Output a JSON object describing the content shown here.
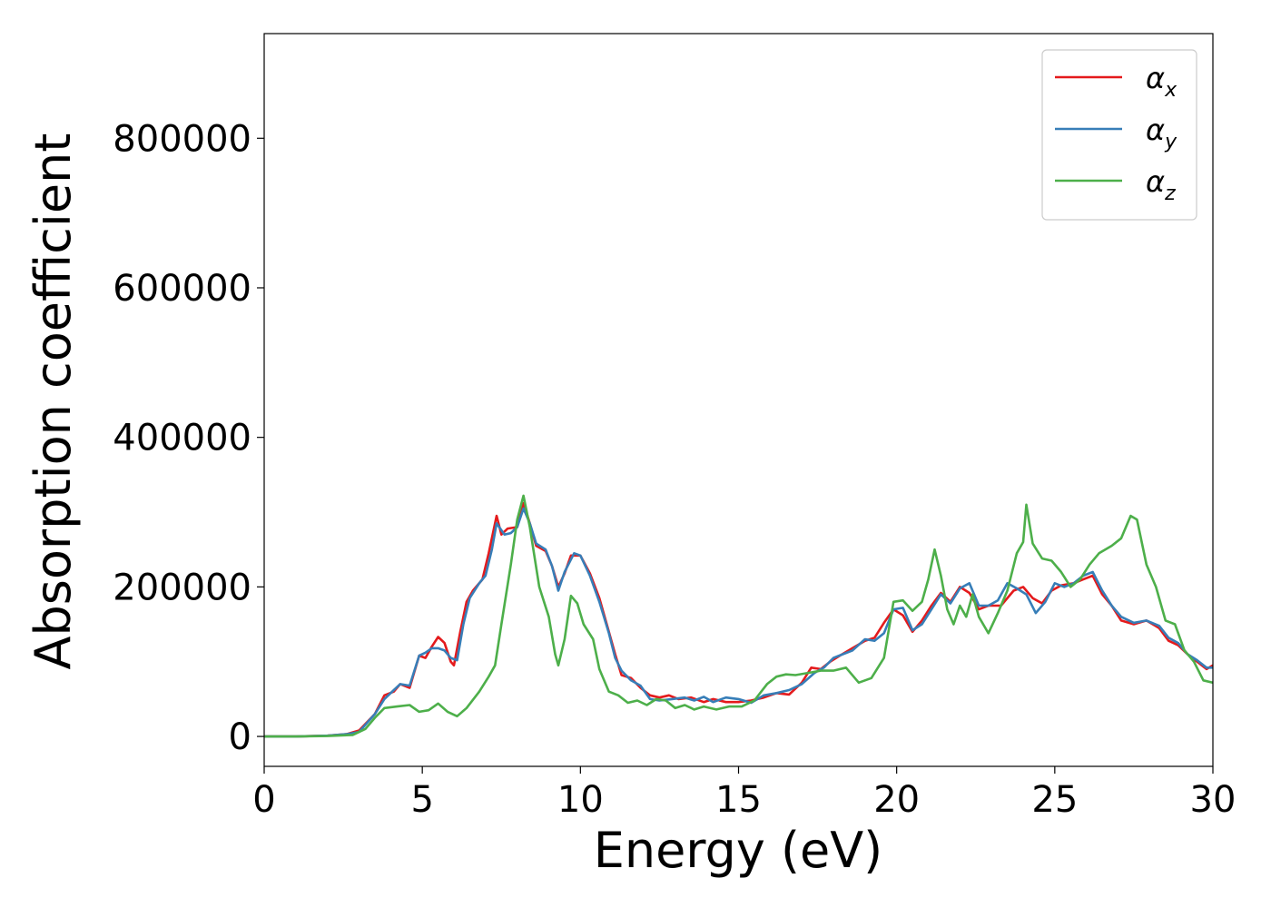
{
  "chart_data": {
    "type": "line",
    "title": "",
    "xlabel": "Energy (eV)",
    "ylabel": "Absorption coefficient",
    "xlim": [
      0,
      30
    ],
    "ylim": [
      -40000,
      940000
    ],
    "xticks": [
      0,
      5,
      10,
      15,
      20,
      25,
      30
    ],
    "yticks": [
      0,
      200000,
      400000,
      600000,
      800000
    ],
    "grid": false,
    "legend_position": "top-right",
    "series": [
      {
        "name": "α",
        "subscript": "x",
        "color": "#e41a1c",
        "points": [
          [
            0,
            0
          ],
          [
            1,
            0
          ],
          [
            2,
            1000
          ],
          [
            2.6,
            3000
          ],
          [
            3,
            8000
          ],
          [
            3.5,
            30000
          ],
          [
            3.8,
            55000
          ],
          [
            4.1,
            60000
          ],
          [
            4.3,
            70000
          ],
          [
            4.6,
            65000
          ],
          [
            4.9,
            108000
          ],
          [
            5.1,
            105000
          ],
          [
            5.3,
            120000
          ],
          [
            5.5,
            133000
          ],
          [
            5.7,
            125000
          ],
          [
            5.9,
            100000
          ],
          [
            6.0,
            95000
          ],
          [
            6.2,
            140000
          ],
          [
            6.4,
            180000
          ],
          [
            6.6,
            195000
          ],
          [
            6.9,
            210000
          ],
          [
            7.1,
            245000
          ],
          [
            7.35,
            295000
          ],
          [
            7.5,
            270000
          ],
          [
            7.7,
            278000
          ],
          [
            8.0,
            280000
          ],
          [
            8.2,
            312000
          ],
          [
            8.4,
            285000
          ],
          [
            8.6,
            255000
          ],
          [
            8.9,
            248000
          ],
          [
            9.1,
            228000
          ],
          [
            9.3,
            200000
          ],
          [
            9.5,
            218000
          ],
          [
            9.7,
            242000
          ],
          [
            10.0,
            242000
          ],
          [
            10.3,
            218000
          ],
          [
            10.6,
            185000
          ],
          [
            10.9,
            140000
          ],
          [
            11.1,
            110000
          ],
          [
            11.3,
            82000
          ],
          [
            11.6,
            78000
          ],
          [
            11.9,
            65000
          ],
          [
            12.2,
            55000
          ],
          [
            12.5,
            52000
          ],
          [
            12.8,
            55000
          ],
          [
            13.1,
            50000
          ],
          [
            13.5,
            52000
          ],
          [
            13.9,
            46000
          ],
          [
            14.2,
            50000
          ],
          [
            14.6,
            46000
          ],
          [
            15.0,
            46000
          ],
          [
            15.4,
            48000
          ],
          [
            15.8,
            52000
          ],
          [
            16.2,
            58000
          ],
          [
            16.6,
            56000
          ],
          [
            17.0,
            72000
          ],
          [
            17.3,
            92000
          ],
          [
            17.6,
            90000
          ],
          [
            17.9,
            100000
          ],
          [
            18.2,
            108000
          ],
          [
            18.6,
            118000
          ],
          [
            19.0,
            128000
          ],
          [
            19.3,
            132000
          ],
          [
            19.6,
            152000
          ],
          [
            19.9,
            170000
          ],
          [
            20.2,
            162000
          ],
          [
            20.5,
            140000
          ],
          [
            20.8,
            155000
          ],
          [
            21.1,
            175000
          ],
          [
            21.4,
            192000
          ],
          [
            21.7,
            180000
          ],
          [
            22.0,
            200000
          ],
          [
            22.3,
            192000
          ],
          [
            22.6,
            170000
          ],
          [
            22.9,
            175000
          ],
          [
            23.3,
            175000
          ],
          [
            23.7,
            195000
          ],
          [
            24.0,
            200000
          ],
          [
            24.3,
            185000
          ],
          [
            24.6,
            178000
          ],
          [
            24.9,
            195000
          ],
          [
            25.2,
            202000
          ],
          [
            25.6,
            205000
          ],
          [
            25.9,
            210000
          ],
          [
            26.2,
            215000
          ],
          [
            26.5,
            190000
          ],
          [
            26.8,
            175000
          ],
          [
            27.1,
            155000
          ],
          [
            27.5,
            150000
          ],
          [
            27.9,
            155000
          ],
          [
            28.3,
            145000
          ],
          [
            28.6,
            128000
          ],
          [
            28.9,
            122000
          ],
          [
            29.2,
            110000
          ],
          [
            29.5,
            100000
          ],
          [
            29.8,
            90000
          ],
          [
            30,
            95000
          ]
        ]
      },
      {
        "name": "α",
        "subscript": "y",
        "color": "#377eb8",
        "points": [
          [
            0,
            0
          ],
          [
            1,
            0
          ],
          [
            2,
            1000
          ],
          [
            2.6,
            3000
          ],
          [
            3,
            6000
          ],
          [
            3.5,
            30000
          ],
          [
            3.8,
            50000
          ],
          [
            4.1,
            62000
          ],
          [
            4.3,
            70000
          ],
          [
            4.6,
            68000
          ],
          [
            4.9,
            108000
          ],
          [
            5.1,
            112000
          ],
          [
            5.3,
            118000
          ],
          [
            5.5,
            118000
          ],
          [
            5.7,
            115000
          ],
          [
            5.9,
            105000
          ],
          [
            6.1,
            102000
          ],
          [
            6.3,
            150000
          ],
          [
            6.5,
            185000
          ],
          [
            6.8,
            205000
          ],
          [
            7.0,
            215000
          ],
          [
            7.2,
            250000
          ],
          [
            7.35,
            285000
          ],
          [
            7.6,
            270000
          ],
          [
            7.8,
            272000
          ],
          [
            8.0,
            280000
          ],
          [
            8.2,
            305000
          ],
          [
            8.4,
            285000
          ],
          [
            8.6,
            258000
          ],
          [
            8.9,
            250000
          ],
          [
            9.1,
            228000
          ],
          [
            9.3,
            195000
          ],
          [
            9.5,
            220000
          ],
          [
            9.8,
            245000
          ],
          [
            10.0,
            242000
          ],
          [
            10.3,
            215000
          ],
          [
            10.6,
            180000
          ],
          [
            10.9,
            138000
          ],
          [
            11.1,
            105000
          ],
          [
            11.3,
            88000
          ],
          [
            11.6,
            75000
          ],
          [
            11.9,
            68000
          ],
          [
            12.2,
            50000
          ],
          [
            12.5,
            48000
          ],
          [
            12.9,
            50000
          ],
          [
            13.3,
            52000
          ],
          [
            13.6,
            48000
          ],
          [
            13.9,
            53000
          ],
          [
            14.2,
            46000
          ],
          [
            14.6,
            52000
          ],
          [
            15.0,
            50000
          ],
          [
            15.4,
            45000
          ],
          [
            15.8,
            55000
          ],
          [
            16.2,
            58000
          ],
          [
            16.6,
            62000
          ],
          [
            17.0,
            70000
          ],
          [
            17.4,
            85000
          ],
          [
            17.7,
            92000
          ],
          [
            18.0,
            105000
          ],
          [
            18.3,
            110000
          ],
          [
            18.6,
            115000
          ],
          [
            19.0,
            130000
          ],
          [
            19.3,
            128000
          ],
          [
            19.6,
            138000
          ],
          [
            19.9,
            170000
          ],
          [
            20.2,
            172000
          ],
          [
            20.5,
            142000
          ],
          [
            20.8,
            150000
          ],
          [
            21.1,
            170000
          ],
          [
            21.4,
            190000
          ],
          [
            21.7,
            178000
          ],
          [
            22.0,
            198000
          ],
          [
            22.3,
            205000
          ],
          [
            22.6,
            175000
          ],
          [
            22.9,
            175000
          ],
          [
            23.2,
            182000
          ],
          [
            23.5,
            205000
          ],
          [
            23.8,
            198000
          ],
          [
            24.1,
            190000
          ],
          [
            24.4,
            165000
          ],
          [
            24.7,
            180000
          ],
          [
            25.0,
            205000
          ],
          [
            25.3,
            200000
          ],
          [
            25.6,
            205000
          ],
          [
            25.9,
            215000
          ],
          [
            26.2,
            220000
          ],
          [
            26.5,
            195000
          ],
          [
            26.8,
            175000
          ],
          [
            27.1,
            160000
          ],
          [
            27.5,
            152000
          ],
          [
            27.9,
            155000
          ],
          [
            28.3,
            148000
          ],
          [
            28.6,
            132000
          ],
          [
            28.9,
            125000
          ],
          [
            29.2,
            110000
          ],
          [
            29.5,
            102000
          ],
          [
            29.8,
            92000
          ],
          [
            30,
            92000
          ]
        ]
      },
      {
        "name": "α",
        "subscript": "z",
        "color": "#4daf4a",
        "points": [
          [
            0,
            0
          ],
          [
            1,
            0
          ],
          [
            2,
            500
          ],
          [
            2.8,
            2000
          ],
          [
            3.2,
            10000
          ],
          [
            3.5,
            25000
          ],
          [
            3.8,
            38000
          ],
          [
            4.2,
            40000
          ],
          [
            4.6,
            42000
          ],
          [
            4.9,
            33000
          ],
          [
            5.2,
            35000
          ],
          [
            5.5,
            44000
          ],
          [
            5.8,
            33000
          ],
          [
            6.1,
            27000
          ],
          [
            6.4,
            38000
          ],
          [
            6.8,
            60000
          ],
          [
            7.1,
            80000
          ],
          [
            7.3,
            95000
          ],
          [
            7.5,
            150000
          ],
          [
            7.8,
            230000
          ],
          [
            8.0,
            290000
          ],
          [
            8.2,
            322000
          ],
          [
            8.4,
            280000
          ],
          [
            8.7,
            200000
          ],
          [
            9.0,
            160000
          ],
          [
            9.2,
            110000
          ],
          [
            9.3,
            95000
          ],
          [
            9.5,
            130000
          ],
          [
            9.7,
            188000
          ],
          [
            9.9,
            178000
          ],
          [
            10.1,
            150000
          ],
          [
            10.4,
            130000
          ],
          [
            10.6,
            90000
          ],
          [
            10.9,
            60000
          ],
          [
            11.2,
            55000
          ],
          [
            11.5,
            45000
          ],
          [
            11.8,
            48000
          ],
          [
            12.1,
            42000
          ],
          [
            12.4,
            50000
          ],
          [
            12.7,
            48000
          ],
          [
            13.0,
            38000
          ],
          [
            13.3,
            42000
          ],
          [
            13.6,
            36000
          ],
          [
            13.9,
            40000
          ],
          [
            14.3,
            36000
          ],
          [
            14.7,
            40000
          ],
          [
            15.1,
            40000
          ],
          [
            15.5,
            48000
          ],
          [
            15.9,
            70000
          ],
          [
            16.2,
            80000
          ],
          [
            16.5,
            83000
          ],
          [
            16.8,
            82000
          ],
          [
            17.2,
            85000
          ],
          [
            17.6,
            88000
          ],
          [
            18.0,
            88000
          ],
          [
            18.4,
            92000
          ],
          [
            18.8,
            72000
          ],
          [
            19.2,
            78000
          ],
          [
            19.6,
            105000
          ],
          [
            19.9,
            180000
          ],
          [
            20.2,
            182000
          ],
          [
            20.5,
            168000
          ],
          [
            20.8,
            180000
          ],
          [
            21.0,
            210000
          ],
          [
            21.2,
            250000
          ],
          [
            21.4,
            215000
          ],
          [
            21.6,
            170000
          ],
          [
            21.8,
            150000
          ],
          [
            22.0,
            175000
          ],
          [
            22.2,
            160000
          ],
          [
            22.4,
            190000
          ],
          [
            22.6,
            160000
          ],
          [
            22.9,
            138000
          ],
          [
            23.2,
            165000
          ],
          [
            23.5,
            195000
          ],
          [
            23.8,
            245000
          ],
          [
            24.0,
            260000
          ],
          [
            24.1,
            310000
          ],
          [
            24.3,
            258000
          ],
          [
            24.6,
            238000
          ],
          [
            24.9,
            235000
          ],
          [
            25.2,
            220000
          ],
          [
            25.5,
            200000
          ],
          [
            25.8,
            210000
          ],
          [
            26.1,
            230000
          ],
          [
            26.4,
            245000
          ],
          [
            26.8,
            255000
          ],
          [
            27.1,
            265000
          ],
          [
            27.4,
            295000
          ],
          [
            27.6,
            290000
          ],
          [
            27.9,
            230000
          ],
          [
            28.2,
            200000
          ],
          [
            28.5,
            155000
          ],
          [
            28.8,
            150000
          ],
          [
            29.1,
            115000
          ],
          [
            29.4,
            100000
          ],
          [
            29.7,
            75000
          ],
          [
            30,
            72000
          ]
        ]
      }
    ]
  }
}
